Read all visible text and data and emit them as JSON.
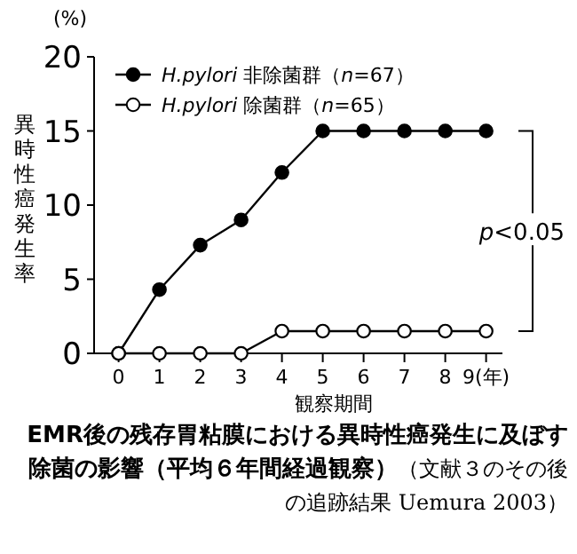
{
  "chart_data": {
    "type": "line",
    "title": "EMR後の残存胃粘膜における異時性癌発生に及ぼす除菌の影響（平均６年間経過観察）",
    "subtitle": "（文献３のその後の追跡結果 Uemura 2003）",
    "xlabel": "観察期間",
    "ylabel": "異時性癌発生率",
    "annotations": [
      "(%)",
      "p<0.05"
    ],
    "x": [
      0,
      1,
      2,
      3,
      4,
      5,
      6,
      7,
      8,
      9
    ],
    "series": [
      {
        "name": "H.pylori 非除菌群（n=67）",
        "color": "#000000",
        "values": [
          0,
          4.3,
          7.3,
          9,
          12.2,
          15,
          15,
          15,
          15,
          15
        ]
      },
      {
        "name": "H.pylori 除菌群（n=65）",
        "color": "#000000",
        "values": [
          0,
          0,
          0,
          0,
          1.5,
          1.5,
          1.5,
          1.5,
          1.5,
          1.5
        ]
      }
    ],
    "xlim": [
      -0.6,
      9.4
    ],
    "xticks": [
      0,
      1,
      2,
      3,
      4,
      5,
      6,
      7,
      8,
      {
        "value": 9,
        "label": "9(年)"
      }
    ],
    "ylim": [
      0,
      20
    ],
    "yticks": [
      0,
      5,
      10,
      15,
      20
    ],
    "grid": false,
    "legend": "top left",
    "marker": "circle",
    "line_style": "solid"
  }
}
